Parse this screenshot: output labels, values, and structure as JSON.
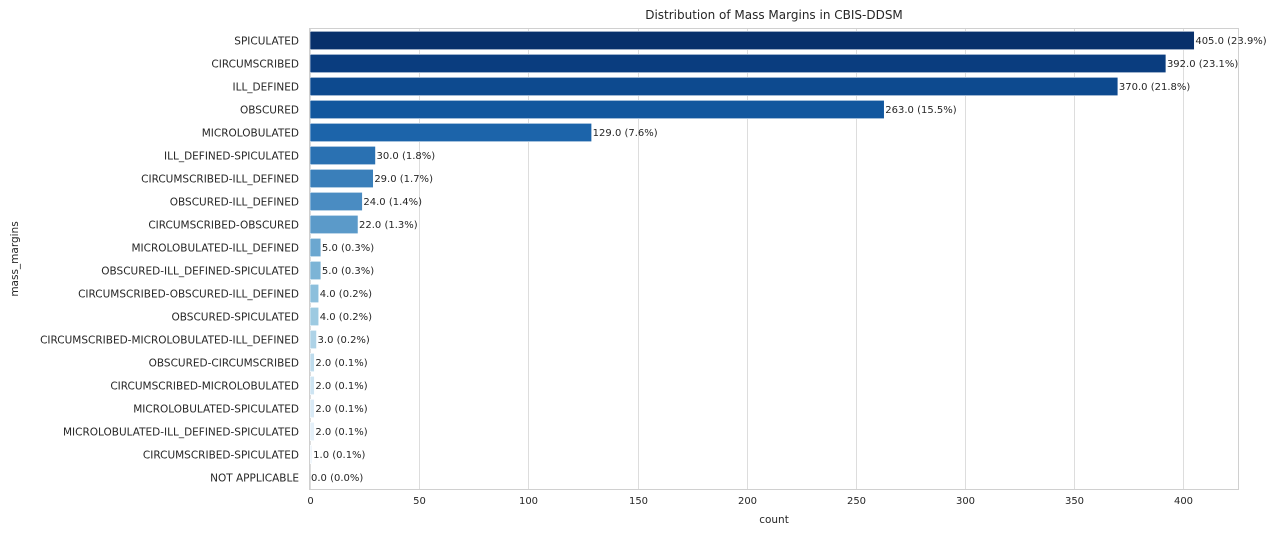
{
  "chart_data": {
    "type": "bar",
    "orientation": "horizontal",
    "title": "Distribution of Mass Margins in CBIS-DDSM",
    "xlabel": "count",
    "ylabel": "mass_margins",
    "xlim": [
      0,
      425
    ],
    "xticks": [
      0,
      50,
      100,
      150,
      200,
      250,
      300,
      350,
      400
    ],
    "grid": true,
    "palette": "Blues_r",
    "categories": [
      "SPICULATED",
      "CIRCUMSCRIBED",
      "ILL_DEFINED",
      "OBSCURED",
      "MICROLOBULATED",
      "ILL_DEFINED-SPICULATED",
      "CIRCUMSCRIBED-ILL_DEFINED",
      "OBSCURED-ILL_DEFINED",
      "CIRCUMSCRIBED-OBSCURED",
      "MICROLOBULATED-ILL_DEFINED",
      "OBSCURED-ILL_DEFINED-SPICULATED",
      "CIRCUMSCRIBED-OBSCURED-ILL_DEFINED",
      "OBSCURED-SPICULATED",
      "CIRCUMSCRIBED-MICROLOBULATED-ILL_DEFINED",
      "OBSCURED-CIRCUMSCRIBED",
      "CIRCUMSCRIBED-MICROLOBULATED",
      "MICROLOBULATED-SPICULATED",
      "MICROLOBULATED-ILL_DEFINED-SPICULATED",
      "CIRCUMSCRIBED-SPICULATED",
      "NOT APPLICABLE"
    ],
    "values": [
      405,
      392,
      370,
      263,
      129,
      30,
      29,
      24,
      22,
      5,
      5,
      4,
      4,
      3,
      2,
      2,
      2,
      2,
      1,
      0
    ],
    "data_labels": [
      "405.0 (23.9%)",
      "392.0 (23.1%)",
      "370.0 (21.8%)",
      "263.0 (15.5%)",
      "129.0 (7.6%)",
      "30.0 (1.8%)",
      "29.0 (1.7%)",
      "24.0 (1.4%)",
      "22.0 (1.3%)",
      "5.0 (0.3%)",
      "5.0 (0.3%)",
      "4.0 (0.2%)",
      "4.0 (0.2%)",
      "3.0 (0.2%)",
      "2.0 (0.1%)",
      "2.0 (0.1%)",
      "2.0 (0.1%)",
      "2.0 (0.1%)",
      "1.0 (0.1%)",
      "0.0 (0.0%)"
    ],
    "colors": [
      "#08306b",
      "#0a3d7f",
      "#0d4a8f",
      "#12579e",
      "#1c64aa",
      "#2a71b2",
      "#3a7fba",
      "#4a8cc2",
      "#5b9ac9",
      "#6ba7d0",
      "#7cb4d6",
      "#8cbfdc",
      "#9dcae1",
      "#aed3e7",
      "#bedced",
      "#cde4f2",
      "#d9eaf6",
      "#e4f0f9",
      "#eef5fb",
      "#f7fbff"
    ]
  }
}
